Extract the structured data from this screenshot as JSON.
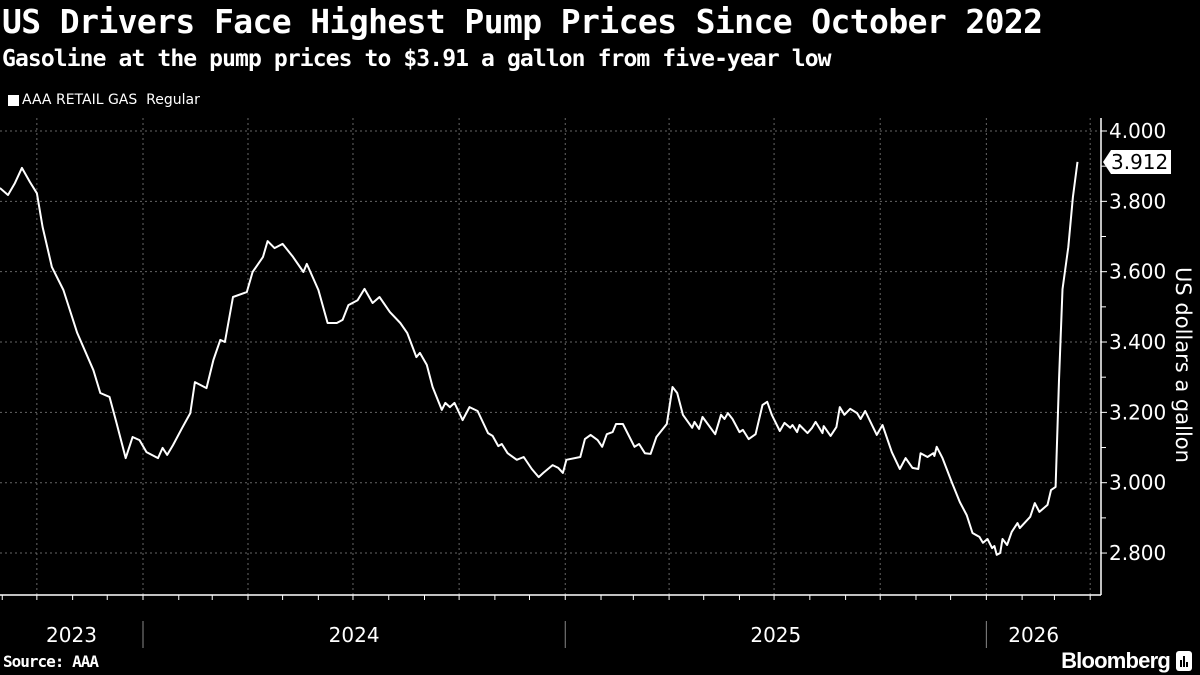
{
  "header": {
    "title": "US Drivers Face Highest Pump Prices Since October 2022",
    "subtitle": "Gasoline at the pump prices to $3.91 a gallon from five-year low"
  },
  "footer": {
    "source": "Source: AAA",
    "brand": "Bloomberg",
    "brand_icon": "bloomberg-chart-icon"
  },
  "chart_data": {
    "type": "line",
    "title": "US Drivers Face Highest Pump Prices Since October 2022",
    "subtitle": "Gasoline at the pump prices to $3.91 a gallon from five-year low",
    "ylabel": "US dollars a gallon",
    "ylim": [
      2.7,
      4.0
    ],
    "yticks": [
      "2.800",
      "3.000",
      "3.200",
      "3.400",
      "3.600",
      "3.800",
      "4.000"
    ],
    "xticks": [
      "2023",
      "2024",
      "2025",
      "2026"
    ],
    "grid": true,
    "legend_position": "top-left",
    "last_value_label": "3.912",
    "colors": {
      "background": "#000000",
      "line": "#ffffff",
      "grid": "#666666"
    },
    "series": [
      {
        "name": "AAA RETAIL GAS  Regular",
        "points": [
          [
            "2023-08-30",
            3.838
          ],
          [
            "2023-09-06",
            3.818
          ],
          [
            "2023-09-12",
            3.852
          ],
          [
            "2023-09-18",
            3.895
          ],
          [
            "2023-09-25",
            3.855
          ],
          [
            "2023-10-01",
            3.823
          ],
          [
            "2023-10-06",
            3.727
          ],
          [
            "2023-10-14",
            3.613
          ],
          [
            "2023-10-24",
            3.548
          ],
          [
            "2023-11-05",
            3.426
          ],
          [
            "2023-11-19",
            3.32
          ],
          [
            "2023-11-25",
            3.255
          ],
          [
            "2023-12-03",
            3.244
          ],
          [
            "2023-12-09",
            3.17
          ],
          [
            "2023-12-17",
            3.07
          ],
          [
            "2023-12-23",
            3.13
          ],
          [
            "2023-12-29",
            3.121
          ],
          [
            "2024-01-04",
            3.087
          ],
          [
            "2024-01-14",
            3.07
          ],
          [
            "2024-01-18",
            3.099
          ],
          [
            "2024-01-22",
            3.079
          ],
          [
            "2024-01-27",
            3.107
          ],
          [
            "2024-02-04",
            3.156
          ],
          [
            "2024-02-11",
            3.198
          ],
          [
            "2024-02-15",
            3.286
          ],
          [
            "2024-02-25",
            3.269
          ],
          [
            "2024-03-02",
            3.349
          ],
          [
            "2024-03-08",
            3.406
          ],
          [
            "2024-03-12",
            3.4
          ],
          [
            "2024-03-19",
            3.528
          ],
          [
            "2024-03-31",
            3.542
          ],
          [
            "2024-04-05",
            3.599
          ],
          [
            "2024-04-14",
            3.642
          ],
          [
            "2024-04-18",
            3.687
          ],
          [
            "2024-04-24",
            3.667
          ],
          [
            "2024-05-01",
            3.679
          ],
          [
            "2024-05-10",
            3.642
          ],
          [
            "2024-05-19",
            3.599
          ],
          [
            "2024-05-22",
            3.622
          ],
          [
            "2024-06-01",
            3.548
          ],
          [
            "2024-06-09",
            3.454
          ],
          [
            "2024-06-17",
            3.454
          ],
          [
            "2024-06-22",
            3.463
          ],
          [
            "2024-06-27",
            3.505
          ],
          [
            "2024-07-05",
            3.519
          ],
          [
            "2024-07-11",
            3.551
          ],
          [
            "2024-07-18",
            3.511
          ],
          [
            "2024-07-24",
            3.528
          ],
          [
            "2024-08-02",
            3.485
          ],
          [
            "2024-08-11",
            3.454
          ],
          [
            "2024-08-17",
            3.426
          ],
          [
            "2024-08-25",
            3.357
          ],
          [
            "2024-08-28",
            3.369
          ],
          [
            "2024-09-03",
            3.335
          ],
          [
            "2024-09-08",
            3.272
          ],
          [
            "2024-09-16",
            3.207
          ],
          [
            "2024-09-19",
            3.227
          ],
          [
            "2024-09-23",
            3.215
          ],
          [
            "2024-09-27",
            3.227
          ],
          [
            "2024-10-04",
            3.178
          ],
          [
            "2024-10-10",
            3.215
          ],
          [
            "2024-10-17",
            3.204
          ],
          [
            "2024-10-26",
            3.141
          ],
          [
            "2024-10-30",
            3.133
          ],
          [
            "2024-11-04",
            3.104
          ],
          [
            "2024-11-07",
            3.11
          ],
          [
            "2024-11-12",
            3.084
          ],
          [
            "2024-11-20",
            3.065
          ],
          [
            "2024-11-26",
            3.073
          ],
          [
            "2024-12-03",
            3.039
          ],
          [
            "2024-12-09",
            3.016
          ],
          [
            "2024-12-13",
            3.028
          ],
          [
            "2024-12-21",
            3.05
          ],
          [
            "2024-12-26",
            3.042
          ],
          [
            "2024-12-30",
            3.028
          ],
          [
            "2025-01-02",
            3.065
          ],
          [
            "2025-01-14",
            3.073
          ],
          [
            "2025-01-18",
            3.124
          ],
          [
            "2025-01-23",
            3.136
          ],
          [
            "2025-01-29",
            3.121
          ],
          [
            "2025-02-02",
            3.102
          ],
          [
            "2025-02-06",
            3.138
          ],
          [
            "2025-02-11",
            3.144
          ],
          [
            "2025-02-14",
            3.167
          ],
          [
            "2025-02-20",
            3.167
          ],
          [
            "2025-03-02",
            3.102
          ],
          [
            "2025-03-06",
            3.11
          ],
          [
            "2025-03-11",
            3.084
          ],
          [
            "2025-03-16",
            3.082
          ],
          [
            "2025-03-21",
            3.13
          ],
          [
            "2025-03-30",
            3.167
          ],
          [
            "2025-04-04",
            3.272
          ],
          [
            "2025-04-08",
            3.255
          ],
          [
            "2025-04-13",
            3.193
          ],
          [
            "2025-04-21",
            3.156
          ],
          [
            "2025-04-23",
            3.173
          ],
          [
            "2025-04-27",
            3.153
          ],
          [
            "2025-04-30",
            3.187
          ],
          [
            "2025-05-11",
            3.138
          ],
          [
            "2025-05-16",
            3.193
          ],
          [
            "2025-05-19",
            3.181
          ],
          [
            "2025-05-22",
            3.198
          ],
          [
            "2025-05-26",
            3.181
          ],
          [
            "2025-06-01",
            3.144
          ],
          [
            "2025-06-04",
            3.15
          ],
          [
            "2025-06-09",
            3.124
          ],
          [
            "2025-06-15",
            3.138
          ],
          [
            "2025-06-21",
            3.221
          ],
          [
            "2025-06-25",
            3.23
          ],
          [
            "2025-06-29",
            3.193
          ],
          [
            "2025-07-06",
            3.147
          ],
          [
            "2025-07-10",
            3.17
          ],
          [
            "2025-07-15",
            3.156
          ],
          [
            "2025-07-17",
            3.164
          ],
          [
            "2025-07-21",
            3.144
          ],
          [
            "2025-07-23",
            3.164
          ],
          [
            "2025-07-30",
            3.141
          ],
          [
            "2025-08-03",
            3.156
          ],
          [
            "2025-08-06",
            3.173
          ],
          [
            "2025-08-12",
            3.141
          ],
          [
            "2025-08-13",
            3.161
          ],
          [
            "2025-08-19",
            3.133
          ],
          [
            "2025-08-24",
            3.158
          ],
          [
            "2025-08-27",
            3.215
          ],
          [
            "2025-08-31",
            3.193
          ],
          [
            "2025-09-05",
            3.21
          ],
          [
            "2025-09-11",
            3.198
          ],
          [
            "2025-09-14",
            3.181
          ],
          [
            "2025-09-18",
            3.204
          ],
          [
            "2025-09-28",
            3.136
          ],
          [
            "2025-10-03",
            3.164
          ],
          [
            "2025-10-11",
            3.087
          ],
          [
            "2025-10-18",
            3.039
          ],
          [
            "2025-10-23",
            3.07
          ],
          [
            "2025-10-29",
            3.042
          ],
          [
            "2025-11-03",
            3.039
          ],
          [
            "2025-11-05",
            3.084
          ],
          [
            "2025-11-11",
            3.073
          ],
          [
            "2025-11-16",
            3.084
          ],
          [
            "2025-11-17",
            3.076
          ],
          [
            "2025-11-19",
            3.102
          ],
          [
            "2025-11-24",
            3.07
          ],
          [
            "2025-12-02",
            3.002
          ],
          [
            "2025-12-09",
            2.945
          ],
          [
            "2025-12-15",
            2.908
          ],
          [
            "2025-12-20",
            2.857
          ],
          [
            "2025-12-26",
            2.846
          ],
          [
            "2025-12-29",
            2.829
          ],
          [
            "2026-01-02",
            2.84
          ],
          [
            "2026-01-06",
            2.814
          ],
          [
            "2026-01-08",
            2.82
          ],
          [
            "2026-01-10",
            2.795
          ],
          [
            "2026-01-13",
            2.8
          ],
          [
            "2026-01-15",
            2.84
          ],
          [
            "2026-01-19",
            2.823
          ],
          [
            "2026-01-23",
            2.86
          ],
          [
            "2026-01-28",
            2.885
          ],
          [
            "2026-01-30",
            2.871
          ],
          [
            "2026-02-08",
            2.903
          ],
          [
            "2026-02-12",
            2.942
          ],
          [
            "2026-02-16",
            2.917
          ],
          [
            "2026-02-23",
            2.937
          ],
          [
            "2026-02-26",
            2.979
          ],
          [
            "2026-03-02",
            2.988
          ],
          [
            "2026-03-05",
            3.292
          ],
          [
            "2026-03-08",
            3.55
          ],
          [
            "2026-03-13",
            3.67
          ],
          [
            "2026-03-17",
            3.812
          ],
          [
            "2026-03-21",
            3.912
          ]
        ]
      }
    ]
  }
}
